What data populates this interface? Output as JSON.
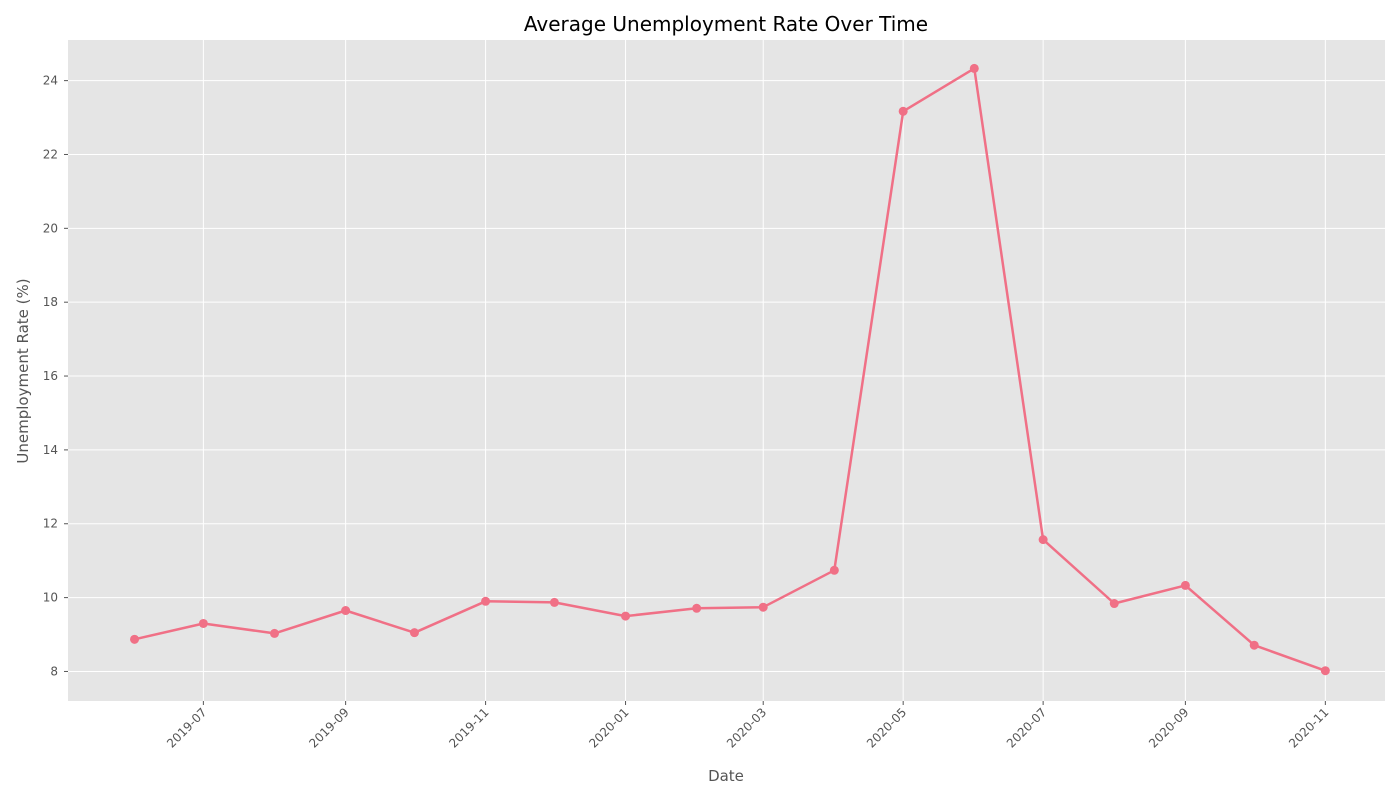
{
  "chart_data": {
    "type": "line",
    "title": "Average Unemployment Rate Over Time",
    "xlabel": "Date",
    "ylabel": "Unemployment Rate (%)",
    "ylim": [
      7.2,
      25.1
    ],
    "xlim": [
      "2019-05-03",
      "2020-11-27"
    ],
    "y_ticks": [
      8,
      10,
      12,
      14,
      16,
      18,
      20,
      22,
      24
    ],
    "x_ticks": [
      "2019-07",
      "2019-09",
      "2019-11",
      "2020-01",
      "2020-03",
      "2020-05",
      "2020-07",
      "2020-09",
      "2020-11"
    ],
    "grid": true,
    "series": [
      {
        "color": "#f07086",
        "x": [
          "2019-06-01",
          "2019-07-01",
          "2019-08-01",
          "2019-09-01",
          "2019-10-01",
          "2019-11-01",
          "2019-12-01",
          "2020-01-01",
          "2020-02-01",
          "2020-03-01",
          "2020-04-01",
          "2020-05-01",
          "2020-06-01",
          "2020-07-01",
          "2020-08-01",
          "2020-09-01",
          "2020-10-01",
          "2020-11-01"
        ],
        "values": [
          8.87,
          9.3,
          9.03,
          9.65,
          9.05,
          9.9,
          9.87,
          9.5,
          9.71,
          9.74,
          10.74,
          23.17,
          24.33,
          11.57,
          9.84,
          10.33,
          8.71,
          8.02
        ]
      }
    ]
  },
  "colors": {
    "plot_background": "#e5e5e5",
    "grid": "#ffffff",
    "line": "#f07086"
  }
}
